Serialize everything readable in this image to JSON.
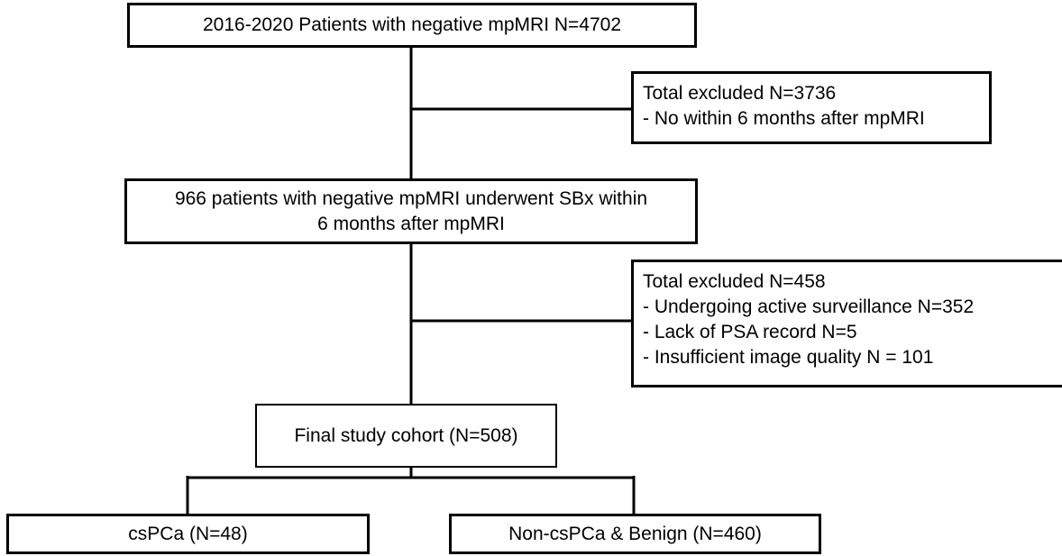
{
  "flowchart": {
    "start": {
      "label": "2016-2020 Patients with negative mpMRI N=4702"
    },
    "exclusion1": {
      "title": "Total excluded N=3736",
      "items": [
        "- No within 6 months after mpMRI"
      ]
    },
    "step2": {
      "lines": [
        "966 patients with negative mpMRI underwent SBx within",
        "6 months after mpMRI"
      ]
    },
    "exclusion2": {
      "title": "Total excluded N=458",
      "items": [
        "- Undergoing active surveillance N=352",
        "- Lack of PSA record N=5",
        "- Insufficient image quality N = 101"
      ]
    },
    "cohort": {
      "label": "Final study cohort (N=508)"
    },
    "outcomes": [
      {
        "label": "csPCa (N=48)"
      },
      {
        "label": "Non-csPCa & Benign (N=460)"
      }
    ]
  }
}
